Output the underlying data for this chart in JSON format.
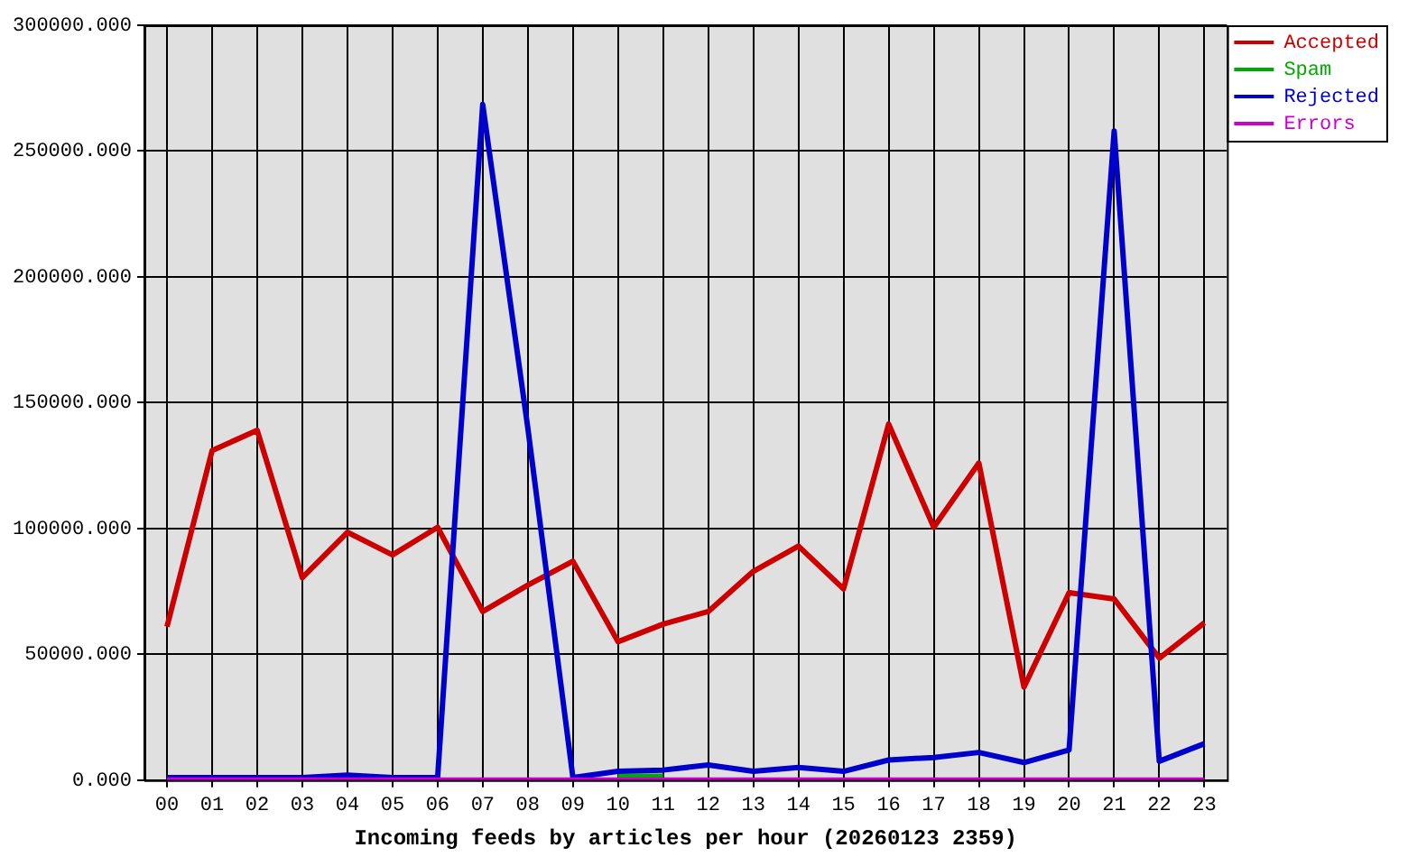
{
  "chart_data": {
    "type": "line",
    "xlabel": "Incoming feeds by articles per hour (20260123 2359)",
    "categories": [
      "00",
      "01",
      "02",
      "03",
      "04",
      "05",
      "06",
      "07",
      "08",
      "09",
      "10",
      "11",
      "12",
      "13",
      "14",
      "15",
      "16",
      "17",
      "18",
      "19",
      "20",
      "21",
      "22",
      "23"
    ],
    "series": [
      {
        "name": "Accepted",
        "color": "#cc0000",
        "values": [
          61000,
          131000,
          139000,
          80500,
          98500,
          89500,
          100500,
          67000,
          77500,
          87000,
          55000,
          62000,
          67000,
          83000,
          93000,
          76000,
          141500,
          100500,
          126000,
          37000,
          74500,
          72000,
          48500,
          62500
        ]
      },
      {
        "name": "Spam",
        "color": "#00aa00",
        "values": [
          null,
          null,
          null,
          null,
          null,
          null,
          null,
          null,
          null,
          null,
          1500,
          1500,
          null,
          null,
          null,
          null,
          null,
          null,
          null,
          null,
          null,
          null,
          null,
          null
        ]
      },
      {
        "name": "Rejected",
        "color": "#0000cc",
        "values": [
          1000,
          1000,
          1000,
          1000,
          2000,
          1000,
          1000,
          268500,
          140000,
          1000,
          3500,
          4000,
          6000,
          3500,
          5000,
          3500,
          8000,
          9000,
          11000,
          7000,
          12000,
          258000,
          7500,
          14500
        ]
      },
      {
        "name": "Errors",
        "color": "#cc00cc",
        "values": [
          0,
          0,
          0,
          0,
          0,
          0,
          0,
          0,
          0,
          0,
          0,
          0,
          0,
          0,
          0,
          0,
          0,
          0,
          0,
          0,
          0,
          0,
          0,
          0
        ]
      }
    ],
    "ylim": [
      0,
      300000
    ],
    "yticks": [
      {
        "value": 0,
        "label": "0.000"
      },
      {
        "value": 50000,
        "label": "50000.000"
      },
      {
        "value": 100000,
        "label": "100000.000"
      },
      {
        "value": 150000,
        "label": "150000.000"
      },
      {
        "value": 200000,
        "label": "200000.000"
      },
      {
        "value": 250000,
        "label": "250000.000"
      },
      {
        "value": 300000,
        "label": "300000.000"
      }
    ],
    "grid": true,
    "legend": "top right",
    "marker": "none",
    "line_style": "solid"
  }
}
